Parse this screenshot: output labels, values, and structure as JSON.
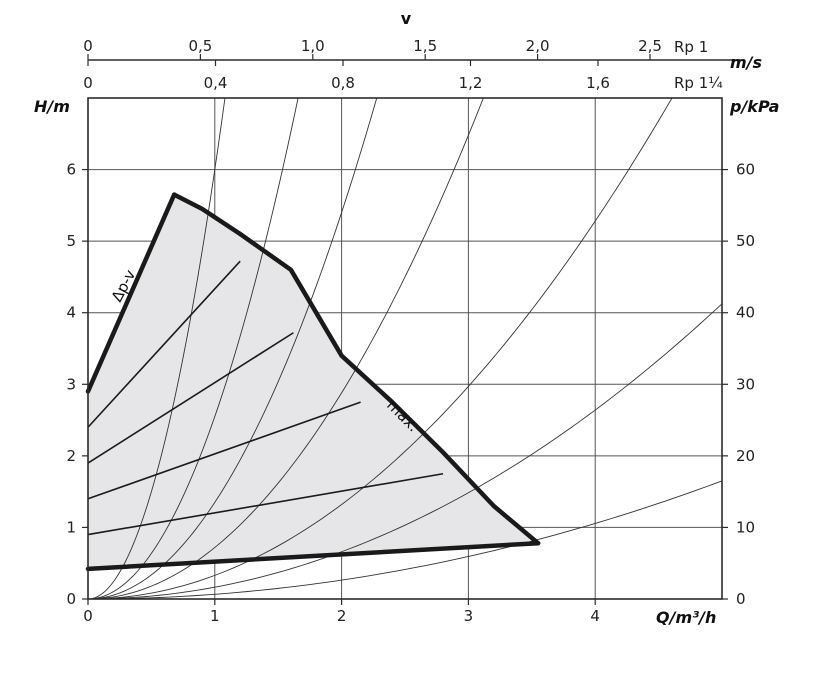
{
  "chart_data": {
    "type": "line",
    "title": "",
    "x_axis": {
      "label": "Q/m³/h",
      "range": [
        0,
        5
      ],
      "ticks": [
        "0",
        "1",
        "2",
        "3",
        "4"
      ]
    },
    "y_axis_left": {
      "label": "H/m",
      "range": [
        0,
        7
      ],
      "ticks": [
        "0",
        "1",
        "2",
        "3",
        "4",
        "5",
        "6"
      ]
    },
    "y_axis_right": {
      "label": "p/kPa",
      "range": [
        0,
        70
      ],
      "ticks": [
        "0",
        "10",
        "20",
        "30",
        "40",
        "50",
        "60"
      ]
    },
    "top_axis": {
      "title": "v",
      "unit": "m/s",
      "scale_rp1": {
        "label": "Rp 1",
        "ticks": [
          "0",
          "0,5",
          "1,0",
          "1,5",
          "2,0",
          "2,5"
        ],
        "values": [
          0,
          0.5,
          1.0,
          1.5,
          2.0,
          2.5
        ]
      },
      "scale_rp114": {
        "label": "Rp 1¼",
        "ticks": [
          "0",
          "0,4",
          "0,8",
          "1,2",
          "1,6"
        ],
        "values": [
          0,
          0.4,
          0.8,
          1.2,
          1.6
        ]
      }
    },
    "grid": true,
    "annotations": {
      "dp_v": "Δp-v",
      "max": "max."
    },
    "operating_field": {
      "fill": "#e6e6e8",
      "min_curve": [
        [
          0,
          0.42
        ],
        [
          3.55,
          0.78
        ]
      ],
      "max_curve": [
        [
          0.68,
          5.65
        ],
        [
          0.9,
          5.45
        ],
        [
          1.2,
          5.1
        ],
        [
          1.6,
          4.6
        ],
        [
          2.0,
          3.4
        ],
        [
          2.4,
          2.75
        ],
        [
          2.8,
          2.05
        ],
        [
          3.2,
          1.3
        ],
        [
          3.55,
          0.78
        ]
      ],
      "dp_v_curve": [
        [
          0,
          2.9
        ],
        [
          0.68,
          5.65
        ]
      ]
    },
    "speed_lines": [
      {
        "points": [
          [
            0,
            2.4
          ],
          [
            1.2,
            4.72
          ]
        ]
      },
      {
        "points": [
          [
            0,
            1.9
          ],
          [
            1.62,
            3.72
          ]
        ]
      },
      {
        "points": [
          [
            0,
            1.4
          ],
          [
            2.15,
            2.75
          ]
        ]
      },
      {
        "points": [
          [
            0,
            0.9
          ],
          [
            2.8,
            1.75
          ]
        ]
      }
    ],
    "system_curves": [
      {
        "k": 6.0
      },
      {
        "k": 2.55
      },
      {
        "k": 1.35
      },
      {
        "k": 0.72
      },
      {
        "k": 0.33
      },
      {
        "k": 0.165
      },
      {
        "k": 0.066
      }
    ],
    "colors": {
      "frame": "#2b2b2b",
      "grid": "#555555",
      "field": "#e6e6e8",
      "thick": "#1a1a1a"
    }
  }
}
